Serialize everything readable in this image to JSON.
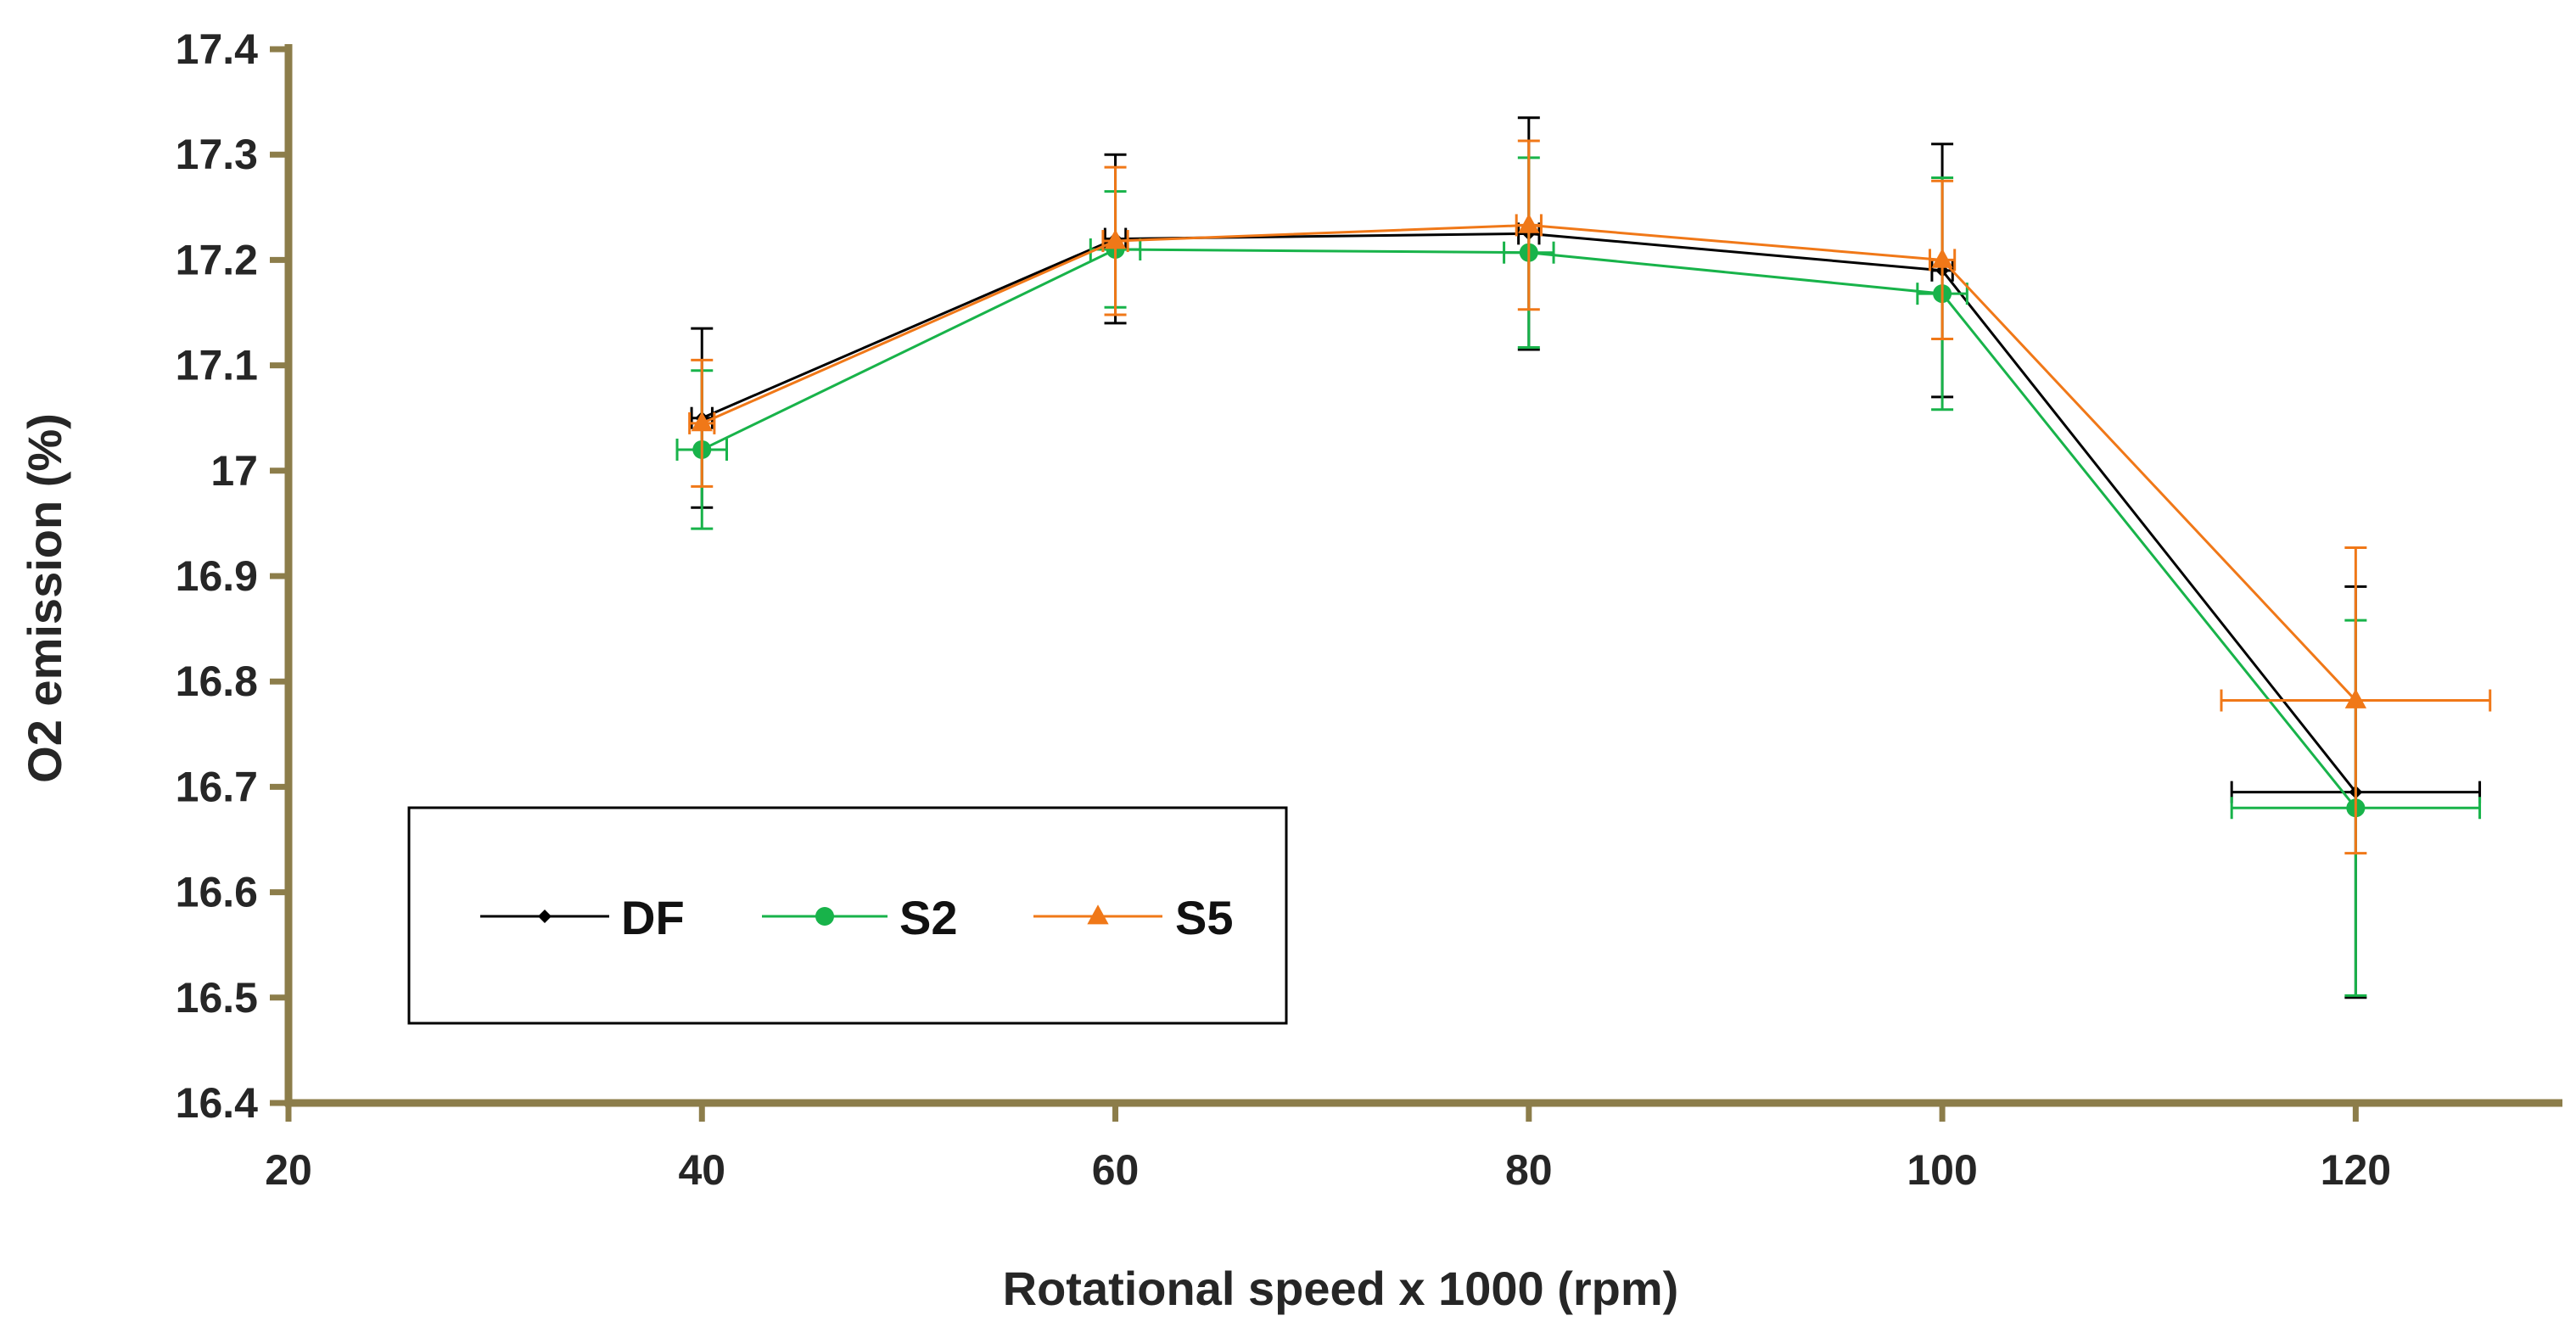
{
  "chart_data": {
    "type": "line",
    "title": "",
    "xlabel": "Rotational speed x 1000 (rpm)",
    "ylabel": "O2 emission (%)",
    "xlim": [
      20,
      130
    ],
    "ylim": [
      16.4,
      17.4
    ],
    "xticks": [
      20,
      40,
      60,
      80,
      100,
      120
    ],
    "yticks": [
      16.4,
      16.5,
      16.6,
      16.7,
      16.8,
      16.9,
      17,
      17.1,
      17.2,
      17.3,
      17.4
    ],
    "x_tick_labels": [
      "20",
      "40",
      "60",
      "80",
      "100",
      "120"
    ],
    "y_tick_labels": [
      "16.4",
      "16.5",
      "16.6",
      "16.7",
      "16.8",
      "16.9",
      "17",
      "17.1",
      "17.2",
      "17.3",
      "17.4"
    ],
    "grid": false,
    "legend_position": "lower-left",
    "axis_color": "#8c7d4a",
    "series": [
      {
        "name": "DF",
        "color": "#000000",
        "marker": "diamond",
        "x": [
          40,
          60,
          80,
          100,
          120
        ],
        "values": [
          17.05,
          17.22,
          17.225,
          17.19,
          16.695
        ],
        "y_err": [
          0.085,
          0.08,
          0.11,
          0.12,
          0.195
        ],
        "x_err": [
          0.5,
          0.5,
          0.5,
          0.5,
          6.0
        ]
      },
      {
        "name": "S2",
        "color": "#18b34a",
        "marker": "circle",
        "x": [
          40,
          60,
          80,
          100,
          120
        ],
        "values": [
          17.02,
          17.21,
          17.207,
          17.168,
          16.68
        ],
        "y_err": [
          0.075,
          0.055,
          0.09,
          0.11,
          0.178
        ],
        "x_err": [
          1.2,
          1.2,
          1.2,
          1.2,
          6.0
        ]
      },
      {
        "name": "S5",
        "color": "#f07818",
        "marker": "triangle",
        "x": [
          40,
          60,
          80,
          100,
          120
        ],
        "values": [
          17.045,
          17.218,
          17.233,
          17.2,
          16.782
        ],
        "y_err": [
          0.06,
          0.07,
          0.08,
          0.075,
          0.145
        ],
        "x_err": [
          0.6,
          0.6,
          0.6,
          0.6,
          6.5
        ]
      }
    ]
  }
}
